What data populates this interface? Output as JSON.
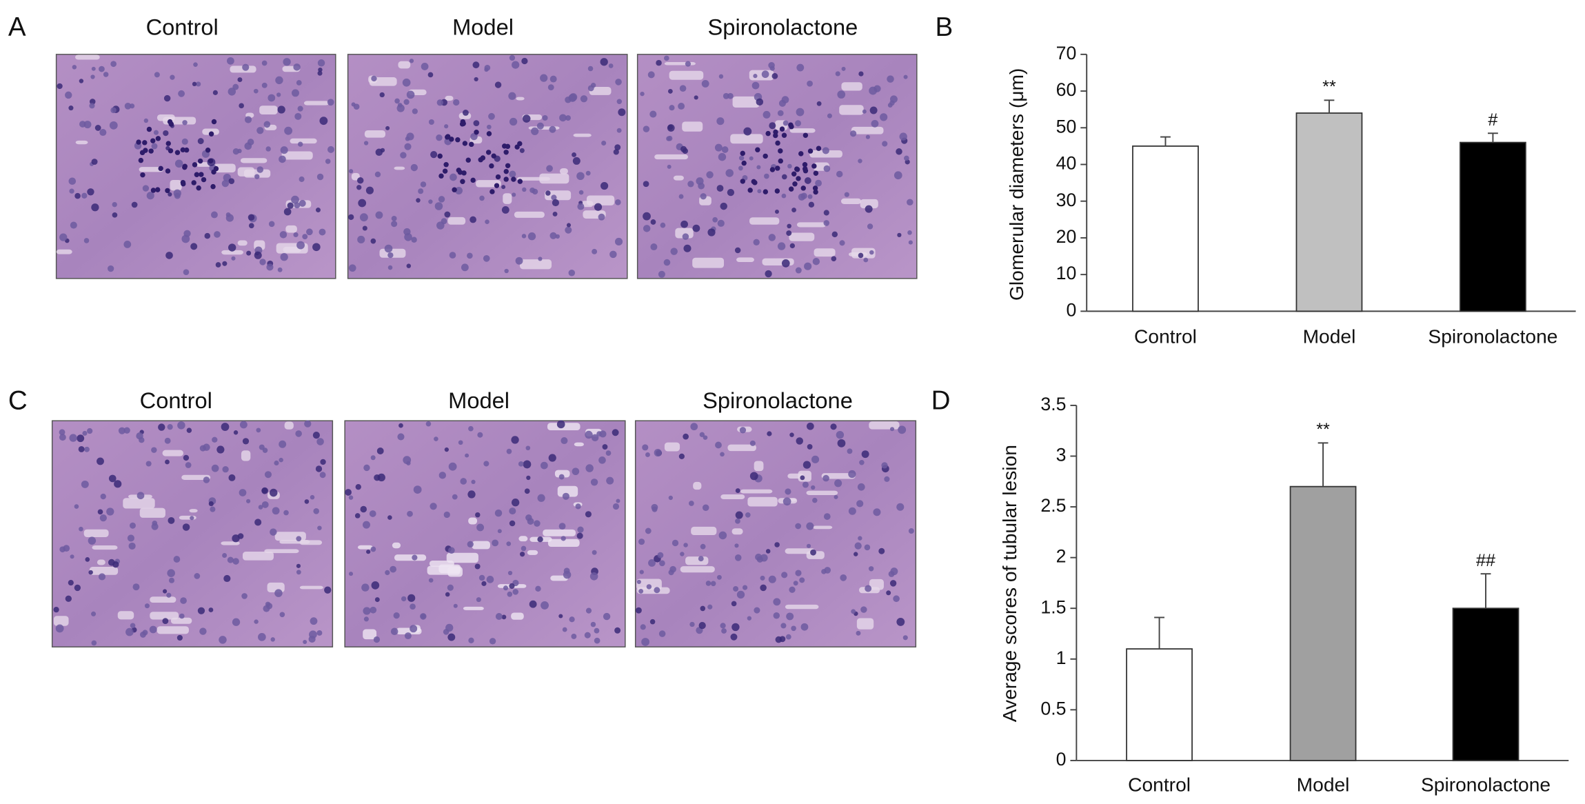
{
  "panels": [
    "A",
    "B",
    "C",
    "D"
  ],
  "images_top": [
    "Control",
    "Model",
    "Spironolactone"
  ],
  "images_bottom": [
    "Control",
    "Model",
    "Spironolactone"
  ],
  "chart_data": [
    {
      "type": "bar",
      "y_label": "Glomerular diameters (μm)",
      "categories": [
        "Control",
        "Model",
        "Spironolactone"
      ],
      "values": [
        45,
        54,
        46
      ],
      "errors": [
        2.5,
        3.5,
        2.5
      ],
      "colors": [
        "#ffffff",
        "#c0c0c0",
        "#000000"
      ],
      "ylim": [
        0,
        70
      ],
      "yticks": [
        0,
        10,
        20,
        30,
        40,
        50,
        60,
        70
      ],
      "annotations": [
        {
          "text": "**",
          "category": "Model"
        },
        {
          "text": "#",
          "category": "Spironolactone"
        }
      ]
    },
    {
      "type": "bar",
      "y_label": "Average scores of tubular lesion",
      "categories": [
        "Control",
        "Model",
        "Spironolactone"
      ],
      "values": [
        1.1,
        2.7,
        1.5
      ],
      "errors": [
        0.31,
        0.43,
        0.34
      ],
      "colors": [
        "#ffffff",
        "#a0a0a0",
        "#000000"
      ],
      "ylim": [
        0,
        3.5
      ],
      "yticks": [
        0,
        0.5,
        1,
        1.5,
        2,
        2.5,
        3,
        3.5
      ],
      "annotations": [
        {
          "text": "**",
          "category": "Model"
        },
        {
          "text": "##",
          "category": "Spironolactone"
        }
      ]
    }
  ]
}
